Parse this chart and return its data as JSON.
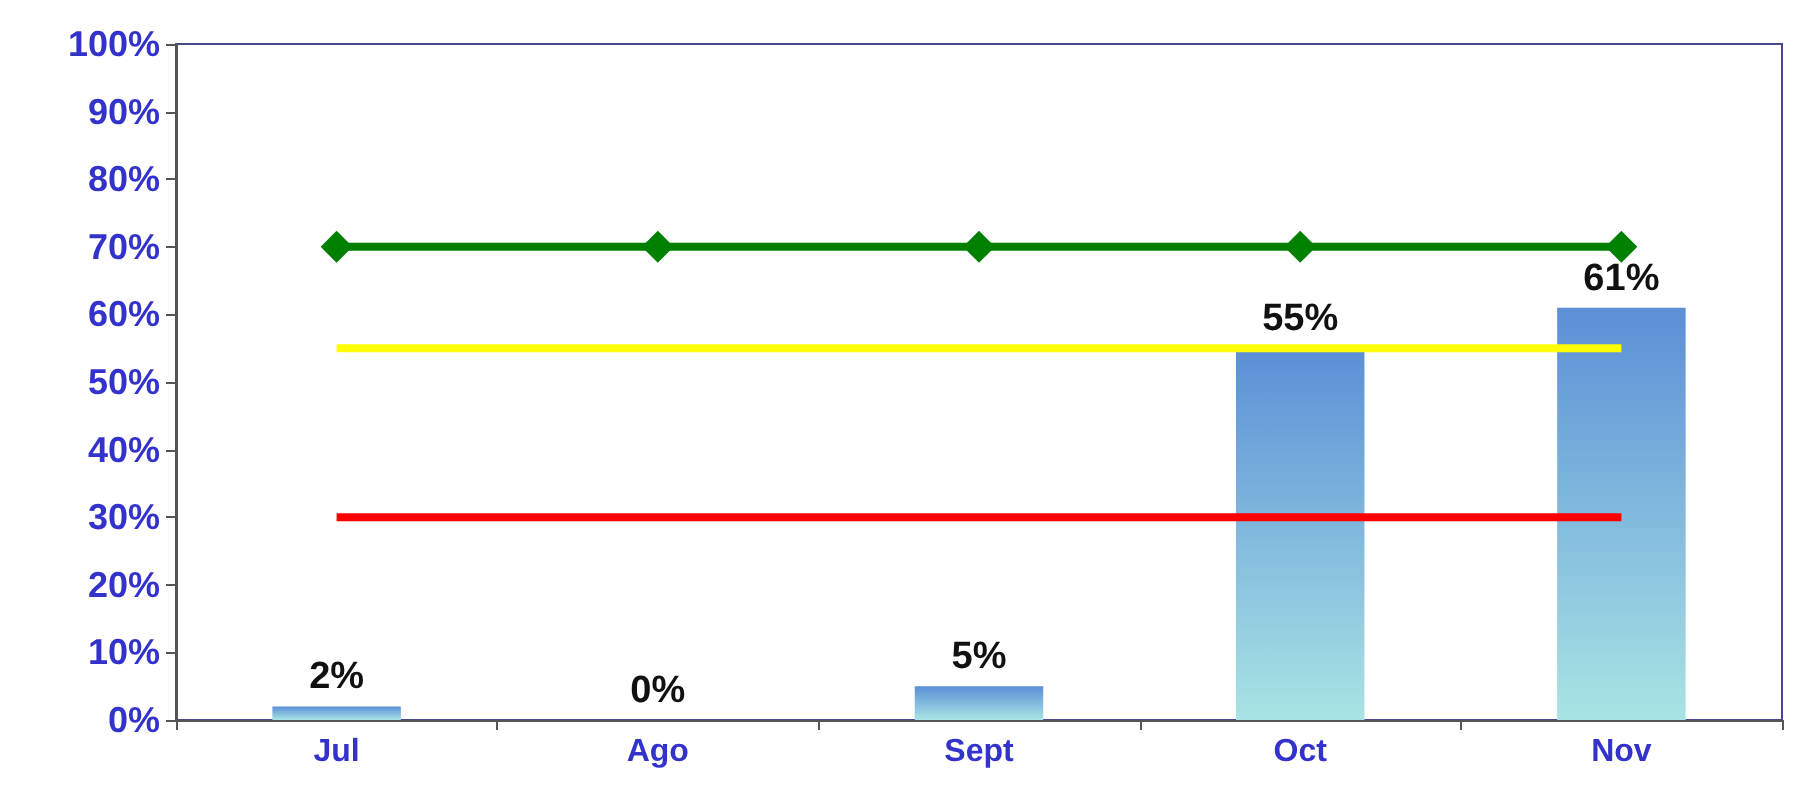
{
  "chart_data": {
    "type": "bar",
    "categories": [
      "Jul",
      "Ago",
      "Sept",
      "Oct",
      "Nov"
    ],
    "series": [
      {
        "color": "#5b8fd6",
        "values": [
          2,
          0,
          5,
          55,
          61
        ],
        "value_labels": [
          "2%",
          "0%",
          "5%",
          "55%",
          "61%"
        ]
      },
      {
        "type": "line",
        "color": "#008000",
        "values": [
          70,
          70,
          70,
          70,
          70
        ],
        "marker": "diamond"
      },
      {
        "type": "line",
        "color": "#ffff00",
        "values": [
          55,
          55,
          55,
          55,
          55
        ],
        "marker": "none"
      },
      {
        "type": "line",
        "color": "#ff0000",
        "values": [
          30,
          30,
          30,
          30,
          30
        ],
        "marker": "none"
      }
    ],
    "ylim": [
      0,
      100
    ],
    "yticks": [
      {
        "value": 0,
        "label": "0%"
      },
      {
        "value": 10,
        "label": "10%"
      },
      {
        "value": 20,
        "label": "20%"
      },
      {
        "value": 30,
        "label": "30%"
      },
      {
        "value": 40,
        "label": "40%"
      },
      {
        "value": 50,
        "label": "50%"
      },
      {
        "value": 60,
        "label": "60%"
      },
      {
        "value": 70,
        "label": "70%"
      },
      {
        "value": 80,
        "label": "80%"
      },
      {
        "value": 90,
        "label": "90%"
      },
      {
        "value": 100,
        "label": "100%"
      }
    ],
    "grid": false
  }
}
